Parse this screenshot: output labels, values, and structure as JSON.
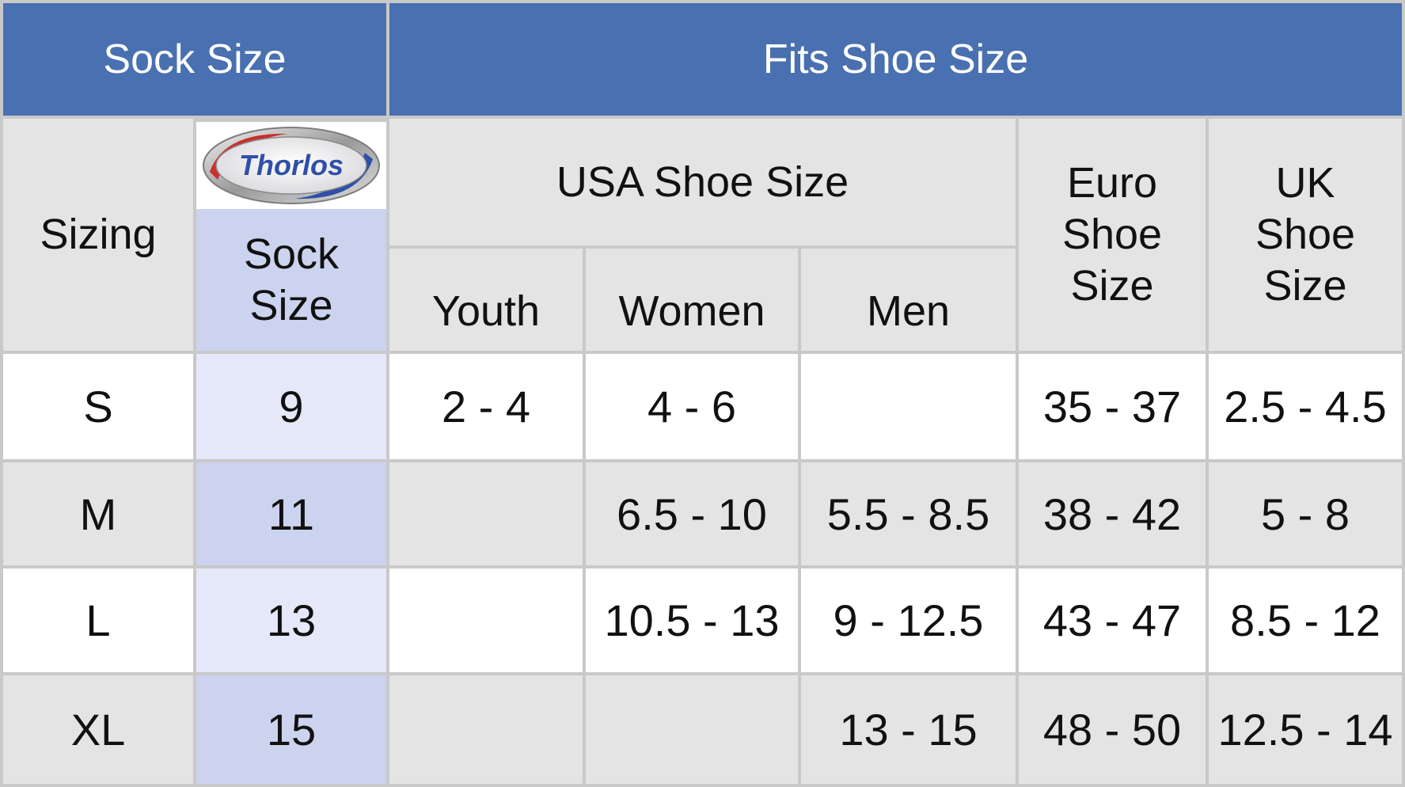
{
  "header": {
    "sock_size": "Sock Size",
    "fits_shoe_size": "Fits Shoe Size"
  },
  "subheader": {
    "sizing": "Sizing",
    "brand_logo_text": "Thorlos",
    "sock_size_line1": "Sock",
    "sock_size_line2": "Size",
    "usa_shoe_size": "USA Shoe Size",
    "youth": "Youth",
    "women": "Women",
    "men": "Men",
    "euro_line1": "Euro",
    "euro_line2": "Shoe",
    "euro_line3": "Size",
    "uk_line1": "UK",
    "uk_line2": "Shoe",
    "uk_line3": "Size"
  },
  "rows": [
    {
      "sizing": "S",
      "sock": "9",
      "youth": "2 - 4",
      "women": "4 - 6",
      "men": "",
      "euro": "35 - 37",
      "uk": "2.5 - 4.5"
    },
    {
      "sizing": "M",
      "sock": "11",
      "youth": "",
      "women": "6.5 - 10",
      "men": "5.5 - 8.5",
      "euro": "38 - 42",
      "uk": "5 - 8"
    },
    {
      "sizing": "L",
      "sock": "13",
      "youth": "",
      "women": "10.5 - 13",
      "men": "9 - 12.5",
      "euro": "43 - 47",
      "uk": "8.5 - 12"
    },
    {
      "sizing": "XL",
      "sock": "15",
      "youth": "",
      "women": "",
      "men": "13 - 15",
      "euro": "48 - 50",
      "uk": "12.5 - 14"
    }
  ],
  "colors": {
    "header_blue": "#4970b0",
    "lavender": "#ccd3ef",
    "light_grey": "#e4e4e4"
  }
}
